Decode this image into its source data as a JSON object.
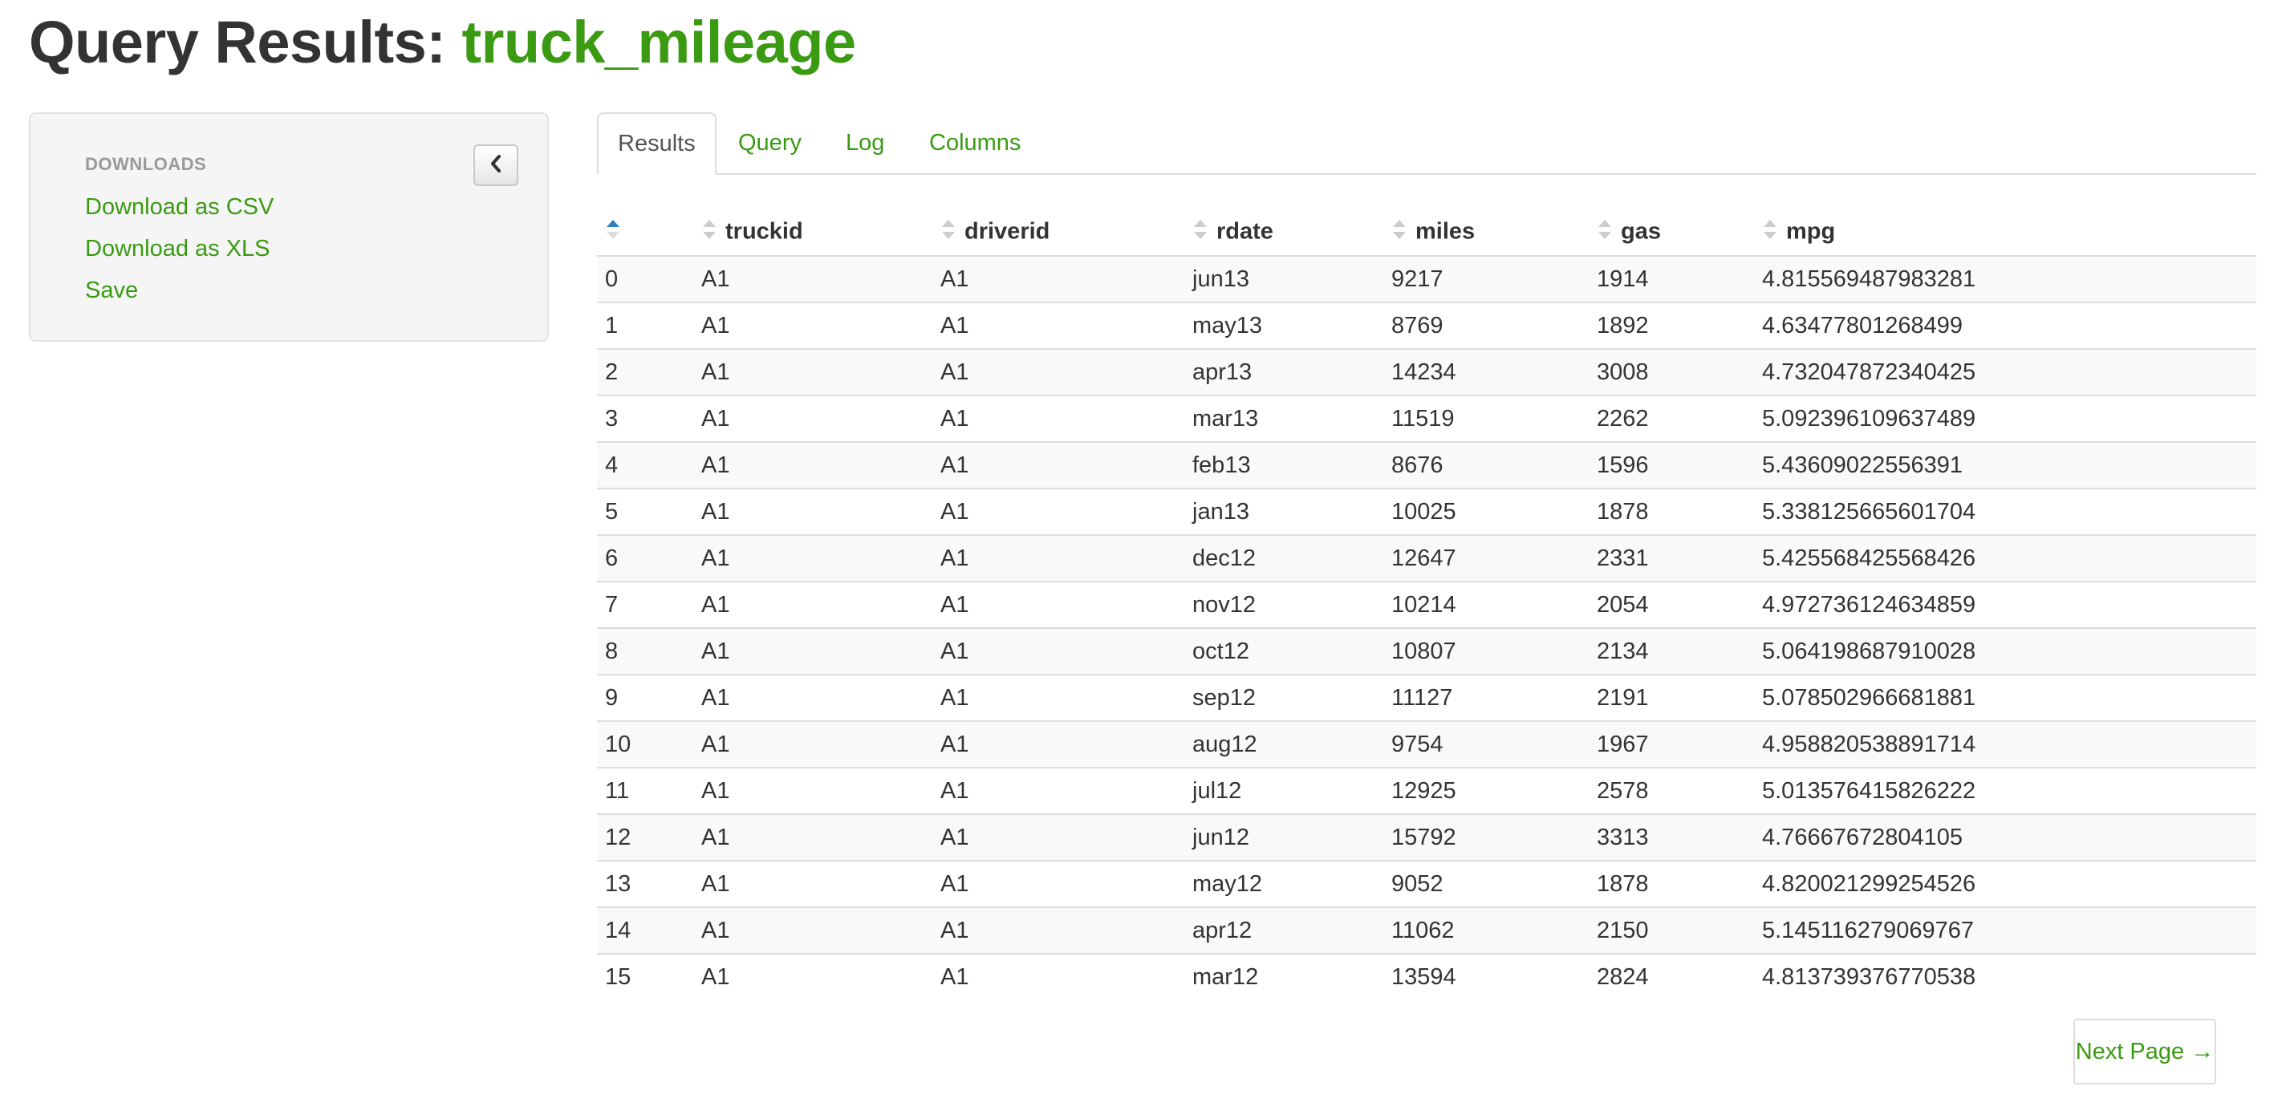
{
  "header": {
    "title_prefix": "Query Results:",
    "title_name": "truck_mileage"
  },
  "sidebar": {
    "section_label": "DOWNLOADS",
    "links": [
      "Download as CSV",
      "Download as XLS",
      "Save"
    ],
    "collapse_icon": "chevron-left-icon"
  },
  "tabs": [
    {
      "label": "Results",
      "active": true
    },
    {
      "label": "Query",
      "active": false
    },
    {
      "label": "Log",
      "active": false
    },
    {
      "label": "Columns",
      "active": false
    }
  ],
  "table": {
    "columns": [
      "",
      "truckid",
      "driverid",
      "rdate",
      "miles",
      "gas",
      "mpg"
    ],
    "sorted_column": 0,
    "sort_direction": "ascending",
    "rows": [
      [
        "0",
        "A1",
        "A1",
        "jun13",
        "9217",
        "1914",
        "4.815569487983281"
      ],
      [
        "1",
        "A1",
        "A1",
        "may13",
        "8769",
        "1892",
        "4.63477801268499"
      ],
      [
        "2",
        "A1",
        "A1",
        "apr13",
        "14234",
        "3008",
        "4.732047872340425"
      ],
      [
        "3",
        "A1",
        "A1",
        "mar13",
        "11519",
        "2262",
        "5.092396109637489"
      ],
      [
        "4",
        "A1",
        "A1",
        "feb13",
        "8676",
        "1596",
        "5.43609022556391"
      ],
      [
        "5",
        "A1",
        "A1",
        "jan13",
        "10025",
        "1878",
        "5.338125665601704"
      ],
      [
        "6",
        "A1",
        "A1",
        "dec12",
        "12647",
        "2331",
        "5.425568425568426"
      ],
      [
        "7",
        "A1",
        "A1",
        "nov12",
        "10214",
        "2054",
        "4.972736124634859"
      ],
      [
        "8",
        "A1",
        "A1",
        "oct12",
        "10807",
        "2134",
        "5.064198687910028"
      ],
      [
        "9",
        "A1",
        "A1",
        "sep12",
        "11127",
        "2191",
        "5.078502966681881"
      ],
      [
        "10",
        "A1",
        "A1",
        "aug12",
        "9754",
        "1967",
        "4.958820538891714"
      ],
      [
        "11",
        "A1",
        "A1",
        "jul12",
        "12925",
        "2578",
        "5.013576415826222"
      ],
      [
        "12",
        "A1",
        "A1",
        "jun12",
        "15792",
        "3313",
        "4.76667672804105"
      ],
      [
        "13",
        "A1",
        "A1",
        "may12",
        "9052",
        "1878",
        "4.820021299254526"
      ],
      [
        "14",
        "A1",
        "A1",
        "apr12",
        "11062",
        "2150",
        "5.145116279069767"
      ],
      [
        "15",
        "A1",
        "A1",
        "mar12",
        "13594",
        "2824",
        "4.813739376770538"
      ]
    ]
  },
  "pagination": {
    "next_label": "Next Page →"
  },
  "colors": {
    "accent": "#3a9a12",
    "text": "#333333",
    "muted": "#999999",
    "sort_active": "#2f7fc0",
    "sort_inactive": "#cccccc"
  }
}
